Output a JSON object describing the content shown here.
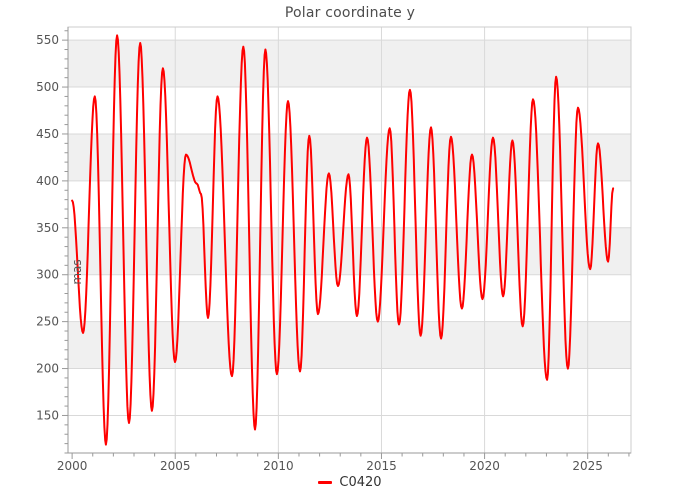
{
  "chart_data": {
    "type": "line",
    "title": "Polar coordinate y",
    "xlabel": "",
    "ylabel": "mas",
    "legend": {
      "position": "bottom-center",
      "items": [
        {
          "label": "C0420",
          "color": "#ff0000",
          "marker": "line-dash"
        }
      ]
    },
    "x_axis": {
      "lim": [
        1999.8,
        2027.1
      ],
      "major_ticks": [
        2000,
        2005,
        2010,
        2015,
        2020,
        2025
      ],
      "minor_step": 1
    },
    "y_axis": {
      "lim": [
        110,
        564
      ],
      "major_ticks": [
        150,
        200,
        250,
        300,
        350,
        400,
        450,
        500,
        550
      ],
      "minor_step": 10
    },
    "grid": true,
    "split_area_bands": [
      [
        200,
        250
      ],
      [
        300,
        350
      ],
      [
        400,
        450
      ],
      [
        500,
        550
      ]
    ],
    "series": [
      {
        "name": "C0420",
        "color": "#ff0000",
        "encoding": "extrema_keypoints_year_vs_mas",
        "keypoints": [
          [
            2000.0,
            379
          ],
          [
            2000.53,
            238
          ],
          [
            2001.1,
            490
          ],
          [
            2001.64,
            119
          ],
          [
            2002.18,
            555
          ],
          [
            2002.76,
            142
          ],
          [
            2003.3,
            547
          ],
          [
            2003.87,
            155
          ],
          [
            2004.4,
            520
          ],
          [
            2004.99,
            207
          ],
          [
            2005.52,
            428
          ],
          [
            2006.05,
            397
          ],
          [
            2006.25,
            386
          ],
          [
            2006.59,
            254
          ],
          [
            2007.05,
            490
          ],
          [
            2007.75,
            192
          ],
          [
            2008.3,
            543
          ],
          [
            2008.87,
            135
          ],
          [
            2009.37,
            540
          ],
          [
            2009.93,
            194
          ],
          [
            2010.47,
            485
          ],
          [
            2011.05,
            197
          ],
          [
            2011.5,
            448
          ],
          [
            2011.92,
            258
          ],
          [
            2012.45,
            408
          ],
          [
            2012.89,
            288
          ],
          [
            2013.4,
            407
          ],
          [
            2013.81,
            256
          ],
          [
            2014.3,
            446
          ],
          [
            2014.82,
            250
          ],
          [
            2015.4,
            456
          ],
          [
            2015.85,
            247
          ],
          [
            2016.38,
            497
          ],
          [
            2016.9,
            235
          ],
          [
            2017.4,
            457
          ],
          [
            2017.89,
            232
          ],
          [
            2018.37,
            447
          ],
          [
            2018.9,
            264
          ],
          [
            2019.39,
            428
          ],
          [
            2019.9,
            274
          ],
          [
            2020.41,
            446
          ],
          [
            2020.9,
            277
          ],
          [
            2021.35,
            443
          ],
          [
            2021.85,
            245
          ],
          [
            2022.35,
            487
          ],
          [
            2023.03,
            188
          ],
          [
            2023.47,
            511
          ],
          [
            2024.04,
            200
          ],
          [
            2024.53,
            478
          ],
          [
            2025.12,
            306
          ],
          [
            2025.5,
            440
          ],
          [
            2025.99,
            314
          ],
          [
            2026.23,
            392
          ]
        ]
      }
    ]
  },
  "style": {
    "background": "#ffffff",
    "band_color": "#f0f0f0",
    "grid_color": "#d9d9d9",
    "border_color": "#cccccc",
    "axis_color": "#999999",
    "tick_label_color": "#555555",
    "title_color": "#4d4d4d",
    "legend_text_color": "#333333"
  }
}
